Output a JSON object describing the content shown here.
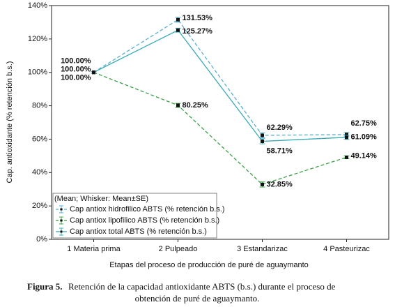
{
  "chart_data": {
    "type": "line",
    "y_label": "Cap. antioxidante (% retención b.s.)",
    "x_label": "Etapas del proceso de producción de puré de aguaymanto",
    "categories": [
      "1 Materia prima",
      "2 Pulpeado",
      "3 Estandarizac",
      "4 Pasteurizac"
    ],
    "ylim": [
      0,
      140
    ],
    "yticks": [
      {
        "value": 0,
        "label": "0%"
      },
      {
        "value": 20,
        "label": "20%"
      },
      {
        "value": 40,
        "label": "40%"
      },
      {
        "value": 60,
        "label": "60%"
      },
      {
        "value": 80,
        "label": "80%"
      },
      {
        "value": 100,
        "label": "100%"
      },
      {
        "value": 120,
        "label": "120%"
      },
      {
        "value": 140,
        "label": "140%"
      }
    ],
    "legend_title": "(Mean; Whisker: Mean±SE)",
    "legend_position": "lower left",
    "series": [
      {
        "name": "Cap antiox hidrofilico ABTS (% retención b.s.)",
        "color": "#5aaed0",
        "dashed": true,
        "values": [
          100.0,
          131.53,
          62.29,
          62.75
        ],
        "errors": [
          0.5,
          1.5,
          1.5,
          1.2
        ],
        "value_labels": [
          "100.00%",
          "131.53%",
          "62.29%",
          "62.75%"
        ]
      },
      {
        "name": "Cap antiox lipofilico ABTS (% retención b.s.)",
        "color": "#3aa046",
        "dashed": true,
        "values": [
          100.0,
          80.25,
          32.85,
          49.14
        ],
        "errors": [
          0.5,
          1.2,
          1.5,
          0.8
        ],
        "value_labels": [
          "100.00%",
          "80.25%",
          "32.85%",
          "49.14%"
        ]
      },
      {
        "name": "Cap antiox total ABTS (% retención b.s.)",
        "color": "#3aaab4",
        "dashed": false,
        "values": [
          100.0,
          125.27,
          58.71,
          61.09
        ],
        "errors": [
          0.5,
          1.2,
          1.5,
          1.2
        ],
        "value_labels": [
          "100.00%",
          "125.27%",
          "58.71%",
          "61.09%"
        ]
      }
    ],
    "caption_label": "Figura 5.",
    "caption_text": "Retención de la capacidad antioxidante ABTS  (b.s.) durante el proceso de obtención de puré de aguaymanto.",
    "caption_line1": "Retención de la capacidad antioxidante ABTS  (b.s.) durante el proceso de",
    "caption_line2": "obtención de puré de aguaymanto."
  }
}
